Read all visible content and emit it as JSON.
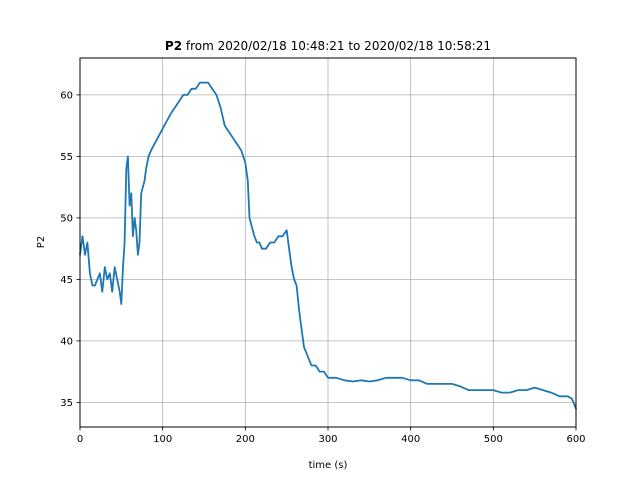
{
  "chart_data": {
    "type": "line",
    "title": {
      "bold_part": "P2",
      "rest": " from 2020/02/18 10:48:21 to 2020/02/18 10:58:21"
    },
    "xlabel": "time (s)",
    "ylabel": "P2",
    "xlim": [
      0,
      600
    ],
    "ylim": [
      33,
      63
    ],
    "xticks": [
      0,
      100,
      200,
      300,
      400,
      500,
      600
    ],
    "yticks": [
      35,
      40,
      45,
      50,
      55,
      60
    ],
    "grid": true,
    "line_color": "#1f77b4",
    "series": [
      {
        "x": [
          0,
          3,
          6,
          9,
          12,
          15,
          18,
          21,
          24,
          27,
          30,
          33,
          36,
          39,
          42,
          45,
          48,
          50,
          52,
          54,
          56,
          58,
          60,
          62,
          64,
          66,
          68,
          70,
          72,
          74,
          76,
          78,
          80,
          83,
          86,
          90,
          94,
          98,
          102,
          106,
          110,
          115,
          120,
          125,
          130,
          135,
          140,
          145,
          150,
          155,
          160,
          165,
          170,
          175,
          180,
          185,
          190,
          195,
          200,
          203,
          205,
          207,
          209,
          211,
          214,
          217,
          220,
          225,
          230,
          235,
          240,
          245,
          250,
          253,
          256,
          259,
          262,
          265,
          268,
          271,
          274,
          277,
          280,
          285,
          290,
          295,
          300,
          310,
          320,
          330,
          340,
          350,
          360,
          370,
          380,
          390,
          400,
          410,
          420,
          430,
          440,
          450,
          460,
          470,
          480,
          490,
          500,
          510,
          520,
          530,
          540,
          550,
          560,
          570,
          580,
          590,
          595,
          600
        ],
        "y": [
          47.0,
          48.5,
          47.0,
          48.0,
          45.5,
          44.5,
          44.5,
          45.0,
          45.5,
          44.0,
          46.0,
          45.0,
          45.5,
          44.0,
          46.0,
          45.0,
          44.0,
          43.0,
          46.0,
          48.0,
          54.0,
          55.0,
          51.0,
          52.0,
          48.5,
          50.0,
          49.0,
          47.0,
          48.0,
          52.0,
          52.5,
          53.0,
          54.0,
          55.0,
          55.5,
          56.0,
          56.5,
          57.0,
          57.5,
          58.0,
          58.5,
          59.0,
          59.5,
          60.0,
          60.0,
          60.5,
          60.5,
          61.0,
          61.0,
          61.0,
          60.5,
          60.0,
          59.0,
          57.5,
          57.0,
          56.5,
          56.0,
          55.5,
          54.5,
          53.0,
          50.0,
          49.5,
          49.0,
          48.5,
          48.0,
          48.0,
          47.5,
          47.5,
          48.0,
          48.0,
          48.5,
          48.5,
          49.0,
          47.5,
          46.0,
          45.0,
          44.5,
          42.5,
          41.0,
          39.5,
          39.0,
          38.5,
          38.0,
          38.0,
          37.5,
          37.5,
          37.0,
          37.0,
          36.8,
          36.7,
          36.8,
          36.7,
          36.8,
          37.0,
          37.0,
          37.0,
          36.8,
          36.8,
          36.5,
          36.5,
          36.5,
          36.5,
          36.3,
          36.0,
          36.0,
          36.0,
          36.0,
          35.8,
          35.8,
          36.0,
          36.0,
          36.2,
          36.0,
          35.8,
          35.5,
          35.5,
          35.3,
          34.5
        ]
      }
    ]
  }
}
